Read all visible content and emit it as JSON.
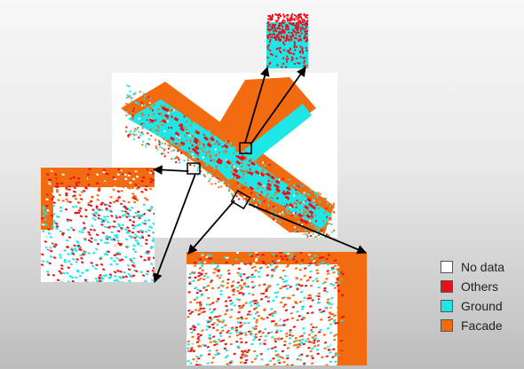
{
  "legend": {
    "items": [
      {
        "label": "No data",
        "color": "#ffffff"
      },
      {
        "label": "Others",
        "color": "#e8101a"
      },
      {
        "label": "Ground",
        "color": "#1fe6e6"
      },
      {
        "label": "Facade",
        "color": "#f26b10"
      }
    ]
  },
  "colors": {
    "others": "#e8101a",
    "ground": "#1fe6e6",
    "facade": "#f26b10",
    "nodata": "#ffffff",
    "arrow": "#000000"
  }
}
